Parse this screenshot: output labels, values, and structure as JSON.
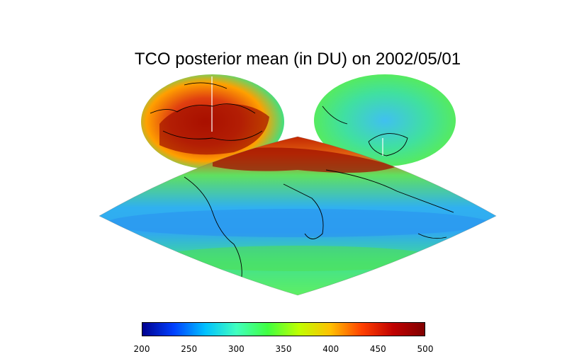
{
  "title": "TCO posterior mean (in DU) on 2002/05/01",
  "colorbar": {
    "min": 200,
    "max": 500,
    "ticks": [
      "200",
      "250",
      "300",
      "350",
      "400",
      "450",
      "500"
    ],
    "colors": [
      "#00008f",
      "#0040ff",
      "#00c0ff",
      "#40ffbf",
      "#40ff40",
      "#c0ff00",
      "#ffc000",
      "#ff4000",
      "#c00000",
      "#800000"
    ]
  },
  "colors": {
    "ocean_low": "#2aa0f0",
    "mid": "#40e0a0",
    "green": "#50e050",
    "high": "#e04010",
    "very_high": "#9a1000",
    "coast": "#000000"
  }
}
